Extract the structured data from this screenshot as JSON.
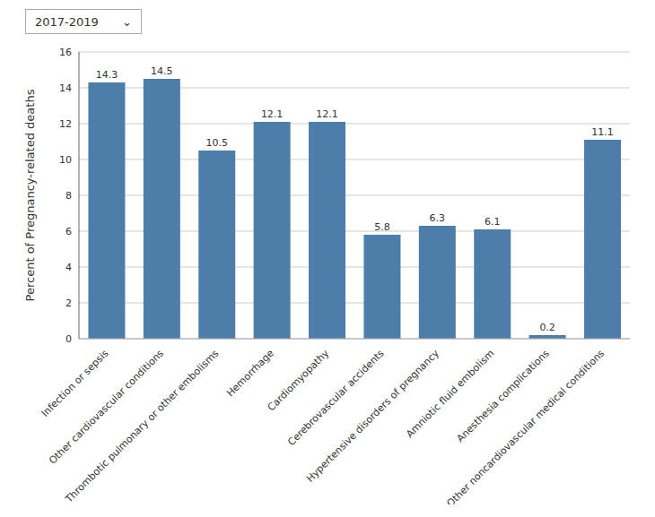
{
  "chart_data": {
    "type": "bar",
    "categories": [
      "Infection or sepsis",
      "Other cardiovascular conditions",
      "Thrombotic pulmonary or other embolisms",
      "Hemorrhage",
      "Cardiomyopathy",
      "Cerebrovascular accidents",
      "Hypertensive disorders of pregnancy",
      "Amniotic fluid embolism",
      "Anesthesia complications",
      "Other noncardiovascular medical conditions"
    ],
    "values": [
      14.3,
      14.5,
      10.5,
      12.1,
      12.1,
      5.8,
      6.3,
      6.1,
      0.2,
      11.1
    ],
    "color": "#4d7eaa",
    "ylabel": "Percent of Pregnancy-related deaths",
    "ylim": [
      0,
      16
    ],
    "yticks": [
      0,
      2,
      4,
      6,
      8,
      10,
      12,
      14,
      16
    ],
    "grid": true,
    "data_labels": true,
    "annotations": [
      "2017-2019",
      "⌄"
    ]
  }
}
